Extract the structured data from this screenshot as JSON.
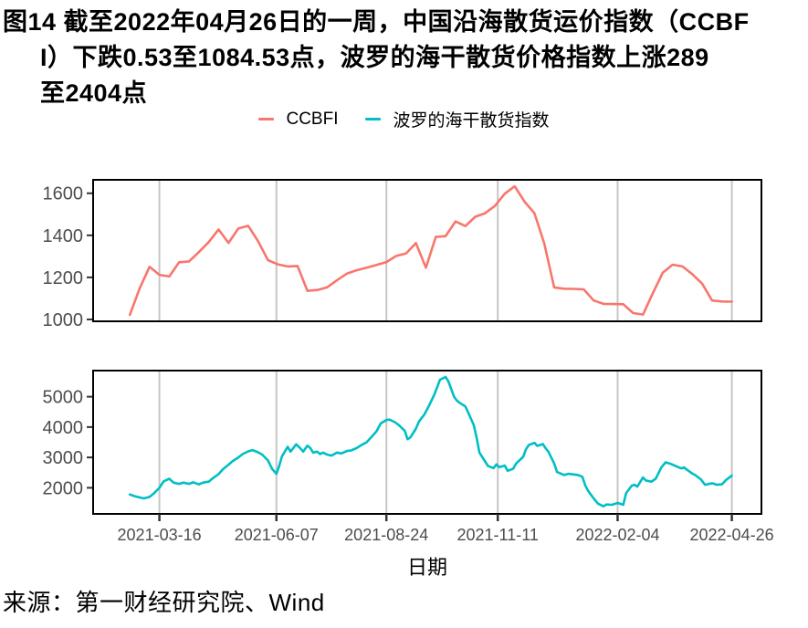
{
  "title": {
    "lines": [
      "图14  截至2022年04月26日的一周，中国沿海散货运价指数（CCBF",
      "I）下跌0.53至1084.53点，波罗的海干散货价格指数上涨289",
      "至2404点"
    ]
  },
  "legend": {
    "items": [
      {
        "label": "CCBFI",
        "color": "#F8766D"
      },
      {
        "label": "波罗的海干散货指数",
        "color": "#00BFC4"
      }
    ]
  },
  "source_note": "来源：第一财经研究院、Wind",
  "chart_data": {
    "type": "line",
    "title": "",
    "xlabel": "日期",
    "legend_position": "top",
    "grid": "vertical-major-only",
    "gridline_color": "#C6C6C6",
    "panel_border_color": "#000000",
    "axis_text_color": "#4D4D4D",
    "tick_color": "#333333",
    "x_domain": [
      "2021-01-28",
      "2022-05-17"
    ],
    "x_tick_labels": [
      "2021-03-16",
      "2021-06-07",
      "2021-08-24",
      "2021-11-11",
      "2022-02-04",
      "2022-04-26"
    ],
    "series": [
      {
        "name": "CCBFI",
        "color": "#F8766D",
        "y_ticks": [
          1000,
          1200,
          1400,
          1600
        ],
        "y_domain": [
          991,
          1664
        ],
        "points": [
          [
            "2021-02-23",
            1022
          ],
          [
            "2021-03-02",
            1148
          ],
          [
            "2021-03-09",
            1250
          ],
          [
            "2021-03-16",
            1212
          ],
          [
            "2021-03-23",
            1204
          ],
          [
            "2021-03-30",
            1272
          ],
          [
            "2021-04-06",
            1276
          ],
          [
            "2021-04-13",
            1320
          ],
          [
            "2021-04-20",
            1368
          ],
          [
            "2021-04-27",
            1428
          ],
          [
            "2021-05-04",
            1364
          ],
          [
            "2021-05-11",
            1433
          ],
          [
            "2021-05-18",
            1445
          ],
          [
            "2021-05-25",
            1372
          ],
          [
            "2021-06-01",
            1282
          ],
          [
            "2021-06-08",
            1262
          ],
          [
            "2021-06-15",
            1252
          ],
          [
            "2021-06-22",
            1254
          ],
          [
            "2021-06-29",
            1136
          ],
          [
            "2021-07-06",
            1140
          ],
          [
            "2021-07-13",
            1153
          ],
          [
            "2021-07-20",
            1187
          ],
          [
            "2021-07-27",
            1218
          ],
          [
            "2021-08-03",
            1234
          ],
          [
            "2021-08-10",
            1246
          ],
          [
            "2021-08-17",
            1259
          ],
          [
            "2021-08-24",
            1273
          ],
          [
            "2021-08-31",
            1302
          ],
          [
            "2021-09-07",
            1314
          ],
          [
            "2021-09-14",
            1363
          ],
          [
            "2021-09-21",
            1246
          ],
          [
            "2021-09-28",
            1392
          ],
          [
            "2021-10-05",
            1396
          ],
          [
            "2021-10-12",
            1466
          ],
          [
            "2021-10-19",
            1444
          ],
          [
            "2021-10-26",
            1488
          ],
          [
            "2021-11-02",
            1505
          ],
          [
            "2021-11-09",
            1540
          ],
          [
            "2021-11-16",
            1598
          ],
          [
            "2021-11-23",
            1633
          ],
          [
            "2021-11-30",
            1560
          ],
          [
            "2021-12-07",
            1505
          ],
          [
            "2021-12-14",
            1360
          ],
          [
            "2021-12-21",
            1152
          ],
          [
            "2021-12-28",
            1146
          ],
          [
            "2022-01-04",
            1145
          ],
          [
            "2022-01-11",
            1143
          ],
          [
            "2022-01-18",
            1090
          ],
          [
            "2022-01-25",
            1074
          ],
          [
            "2022-02-01",
            1073
          ],
          [
            "2022-02-08",
            1072
          ],
          [
            "2022-02-15",
            1030
          ],
          [
            "2022-02-22",
            1023
          ],
          [
            "2022-03-01",
            1125
          ],
          [
            "2022-03-08",
            1222
          ],
          [
            "2022-03-15",
            1260
          ],
          [
            "2022-03-22",
            1252
          ],
          [
            "2022-03-29",
            1215
          ],
          [
            "2022-04-05",
            1170
          ],
          [
            "2022-04-12",
            1090
          ],
          [
            "2022-04-19",
            1085.06
          ],
          [
            "2022-04-26",
            1084.53
          ]
        ]
      },
      {
        "name": "波罗的海干散货指数",
        "color": "#00BFC4",
        "y_ticks": [
          2000,
          3000,
          4000,
          5000
        ],
        "y_domain": [
          1140,
          5860
        ],
        "points": [
          [
            "2021-02-23",
            1780
          ],
          [
            "2021-02-26",
            1730
          ],
          [
            "2021-03-02",
            1680
          ],
          [
            "2021-03-05",
            1650
          ],
          [
            "2021-03-09",
            1700
          ],
          [
            "2021-03-12",
            1810
          ],
          [
            "2021-03-16",
            2000
          ],
          [
            "2021-03-19",
            2210
          ],
          [
            "2021-03-23",
            2300
          ],
          [
            "2021-03-26",
            2170
          ],
          [
            "2021-03-30",
            2130
          ],
          [
            "2021-04-02",
            2170
          ],
          [
            "2021-04-06",
            2130
          ],
          [
            "2021-04-09",
            2180
          ],
          [
            "2021-04-13",
            2110
          ],
          [
            "2021-04-16",
            2170
          ],
          [
            "2021-04-20",
            2200
          ],
          [
            "2021-04-23",
            2320
          ],
          [
            "2021-04-27",
            2450
          ],
          [
            "2021-04-30",
            2610
          ],
          [
            "2021-05-04",
            2760
          ],
          [
            "2021-05-07",
            2880
          ],
          [
            "2021-05-11",
            3000
          ],
          [
            "2021-05-14",
            3110
          ],
          [
            "2021-05-18",
            3200
          ],
          [
            "2021-05-21",
            3240
          ],
          [
            "2021-05-25",
            3170
          ],
          [
            "2021-05-28",
            3090
          ],
          [
            "2021-06-01",
            2900
          ],
          [
            "2021-06-04",
            2620
          ],
          [
            "2021-06-07",
            2460
          ],
          [
            "2021-06-09",
            2720
          ],
          [
            "2021-06-11",
            3040
          ],
          [
            "2021-06-15",
            3350
          ],
          [
            "2021-06-17",
            3190
          ],
          [
            "2021-06-21",
            3430
          ],
          [
            "2021-06-24",
            3300
          ],
          [
            "2021-06-26",
            3190
          ],
          [
            "2021-06-29",
            3390
          ],
          [
            "2021-07-01",
            3310
          ],
          [
            "2021-07-03",
            3160
          ],
          [
            "2021-07-06",
            3190
          ],
          [
            "2021-07-08",
            3110
          ],
          [
            "2021-07-10",
            3160
          ],
          [
            "2021-07-13",
            3090
          ],
          [
            "2021-07-16",
            3060
          ],
          [
            "2021-07-20",
            3160
          ],
          [
            "2021-07-23",
            3130
          ],
          [
            "2021-07-27",
            3210
          ],
          [
            "2021-07-30",
            3230
          ],
          [
            "2021-08-03",
            3310
          ],
          [
            "2021-08-06",
            3400
          ],
          [
            "2021-08-10",
            3500
          ],
          [
            "2021-08-13",
            3650
          ],
          [
            "2021-08-17",
            3860
          ],
          [
            "2021-08-20",
            4120
          ],
          [
            "2021-08-24",
            4235
          ],
          [
            "2021-08-26",
            4250
          ],
          [
            "2021-08-30",
            4160
          ],
          [
            "2021-09-02",
            4060
          ],
          [
            "2021-09-06",
            3880
          ],
          [
            "2021-09-08",
            3600
          ],
          [
            "2021-09-10",
            3660
          ],
          [
            "2021-09-14",
            3950
          ],
          [
            "2021-09-16",
            4170
          ],
          [
            "2021-09-20",
            4420
          ],
          [
            "2021-09-23",
            4680
          ],
          [
            "2021-09-27",
            5070
          ],
          [
            "2021-09-29",
            5310
          ],
          [
            "2021-10-01",
            5560
          ],
          [
            "2021-10-05",
            5650
          ],
          [
            "2021-10-07",
            5500
          ],
          [
            "2021-10-11",
            5000
          ],
          [
            "2021-10-13",
            4870
          ],
          [
            "2021-10-15",
            4800
          ],
          [
            "2021-10-19",
            4680
          ],
          [
            "2021-10-21",
            4480
          ],
          [
            "2021-10-25",
            4060
          ],
          [
            "2021-10-27",
            3640
          ],
          [
            "2021-10-29",
            3160
          ],
          [
            "2021-11-02",
            2870
          ],
          [
            "2021-11-04",
            2720
          ],
          [
            "2021-11-08",
            2650
          ],
          [
            "2021-11-10",
            2770
          ],
          [
            "2021-11-12",
            2680
          ],
          [
            "2021-11-16",
            2730
          ],
          [
            "2021-11-18",
            2560
          ],
          [
            "2021-11-22",
            2630
          ],
          [
            "2021-11-24",
            2800
          ],
          [
            "2021-11-29",
            3020
          ],
          [
            "2021-12-01",
            3270
          ],
          [
            "2021-12-03",
            3410
          ],
          [
            "2021-12-07",
            3480
          ],
          [
            "2021-12-09",
            3380
          ],
          [
            "2021-12-13",
            3440
          ],
          [
            "2021-12-15",
            3300
          ],
          [
            "2021-12-17",
            3180
          ],
          [
            "2021-12-21",
            2800
          ],
          [
            "2021-12-23",
            2520
          ],
          [
            "2021-12-28",
            2420
          ],
          [
            "2021-12-31",
            2460
          ],
          [
            "2022-01-04",
            2440
          ],
          [
            "2022-01-07",
            2420
          ],
          [
            "2022-01-10",
            2360
          ],
          [
            "2022-01-12",
            2080
          ],
          [
            "2022-01-14",
            1900
          ],
          [
            "2022-01-18",
            1650
          ],
          [
            "2022-01-21",
            1480
          ],
          [
            "2022-01-25",
            1390
          ],
          [
            "2022-01-27",
            1450
          ],
          [
            "2022-01-31",
            1440
          ],
          [
            "2022-02-02",
            1470
          ],
          [
            "2022-02-04",
            1500
          ],
          [
            "2022-02-08",
            1440
          ],
          [
            "2022-02-10",
            1820
          ],
          [
            "2022-02-14",
            2070
          ],
          [
            "2022-02-16",
            2100
          ],
          [
            "2022-02-18",
            2040
          ],
          [
            "2022-02-22",
            2340
          ],
          [
            "2022-02-24",
            2240
          ],
          [
            "2022-02-28",
            2200
          ],
          [
            "2022-03-03",
            2300
          ],
          [
            "2022-03-07",
            2670
          ],
          [
            "2022-03-10",
            2840
          ],
          [
            "2022-03-14",
            2780
          ],
          [
            "2022-03-17",
            2720
          ],
          [
            "2022-03-21",
            2640
          ],
          [
            "2022-03-23",
            2670
          ],
          [
            "2022-03-25",
            2600
          ],
          [
            "2022-03-29",
            2470
          ],
          [
            "2022-03-31",
            2420
          ],
          [
            "2022-04-04",
            2280
          ],
          [
            "2022-04-07",
            2100
          ],
          [
            "2022-04-11",
            2140
          ],
          [
            "2022-04-13",
            2140
          ],
          [
            "2022-04-15",
            2100
          ],
          [
            "2022-04-19",
            2115
          ],
          [
            "2022-04-22",
            2260
          ],
          [
            "2022-04-26",
            2404
          ]
        ]
      }
    ]
  }
}
